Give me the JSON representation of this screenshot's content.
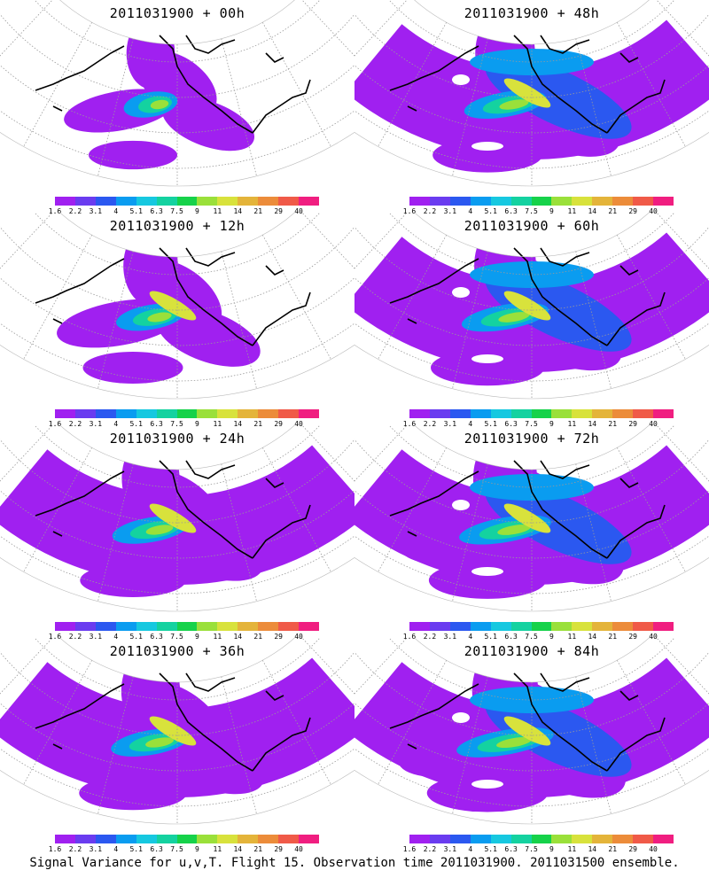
{
  "figure": {
    "caption": "Signal Variance for u,v,T. Flight 15. Observation time 2011031900. 2011031500 ensemble."
  },
  "colorbar": {
    "labels": [
      "1.6",
      "2.2",
      "3.1",
      "4",
      "5.1",
      "6.3",
      "7.5",
      "9",
      "11",
      "14",
      "21",
      "29",
      "40"
    ],
    "colors": [
      "#a020f0",
      "#6a3cf0",
      "#2b58f0",
      "#0a9cf0",
      "#16c8e0",
      "#14d2a0",
      "#16d24a",
      "#9ae03a",
      "#d8e23c",
      "#e4b43a",
      "#ec8c3a",
      "#f05a48",
      "#f01e80"
    ]
  },
  "land_color": "#000000",
  "grid_color": "#9a9a9a",
  "panels": [
    {
      "id": "00h",
      "title": "2011031900 + 00h",
      "intensity": 0.0
    },
    {
      "id": "48h",
      "title": "2011031900 + 48h",
      "intensity": 0.55
    },
    {
      "id": "12h",
      "title": "2011031900 + 12h",
      "intensity": 0.3
    },
    {
      "id": "60h",
      "title": "2011031900 + 60h",
      "intensity": 0.65
    },
    {
      "id": "24h",
      "title": "2011031900 + 24h",
      "intensity": 0.45
    },
    {
      "id": "72h",
      "title": "2011031900 + 72h",
      "intensity": 0.75
    },
    {
      "id": "36h",
      "title": "2011031900 + 36h",
      "intensity": 0.5
    },
    {
      "id": "84h",
      "title": "2011031900 + 84h",
      "intensity": 0.85
    }
  ]
}
